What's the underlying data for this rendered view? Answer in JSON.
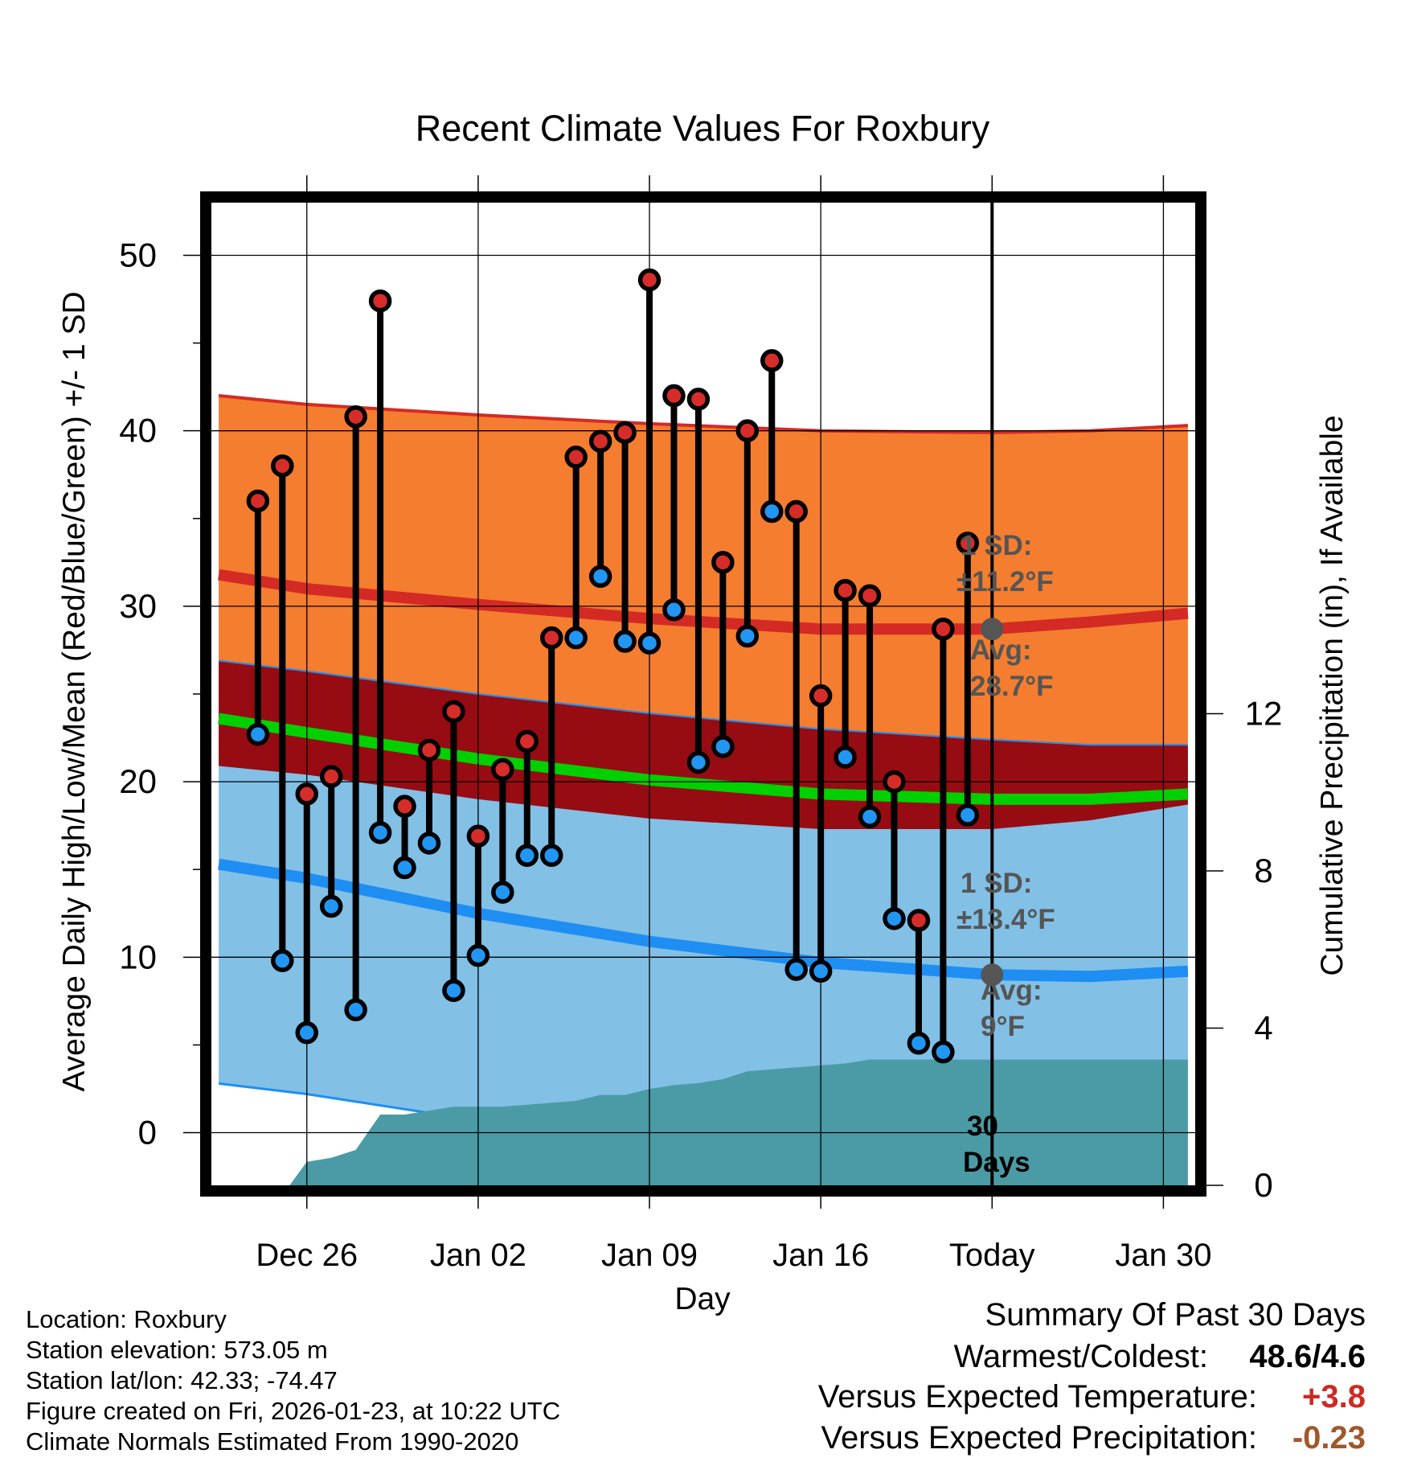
{
  "chart_data": {
    "type": "line",
    "title": "Recent Climate Values For Roxbury",
    "xlabel": "Day",
    "ylabel": "Average Daily High/Low/Mean (Red/Blue/Green) +/- 1 SD",
    "ylabel_right": "Cumulative Precipitation (in), If Available",
    "ylim": [
      -3,
      53
    ],
    "ylim_right": [
      0,
      25
    ],
    "x_range": [
      -3.9,
      36.3
    ],
    "x_ticks": [
      {
        "x": 0,
        "label": "Dec 26"
      },
      {
        "x": 7,
        "label": "Jan 02"
      },
      {
        "x": 14,
        "label": "Jan 09"
      },
      {
        "x": 21,
        "label": "Jan 16"
      },
      {
        "x": 28,
        "label": "Today"
      },
      {
        "x": 35,
        "label": "Jan 30"
      }
    ],
    "y_ticks": [
      0,
      10,
      20,
      30,
      40,
      50
    ],
    "y_ticks_right": [
      0,
      4,
      8,
      12
    ],
    "normals_x": [
      -3.6,
      0,
      7,
      14,
      21,
      28,
      32,
      36
    ],
    "normal_high": [
      31.8,
      31.0,
      30.1,
      29.3,
      28.7,
      28.7,
      29.1,
      29.6
    ],
    "normal_high_plus_sd": [
      42.0,
      41.5,
      40.9,
      40.4,
      40.0,
      39.9,
      40.0,
      40.3
    ],
    "normal_high_minus_sd": [
      20.9,
      20.4,
      19.0,
      17.9,
      17.3,
      17.3,
      17.8,
      18.7
    ],
    "normal_low": [
      15.3,
      14.5,
      12.5,
      10.9,
      9.7,
      9.0,
      8.9,
      9.2
    ],
    "normal_low_plus_sd": [
      26.9,
      26.3,
      25.0,
      23.9,
      23.0,
      22.4,
      22.1,
      22.1
    ],
    "normal_low_minus_sd": [
      2.8,
      2.2,
      0.7,
      -0.1,
      -0.1,
      -0.1,
      -0.1,
      -0.1
    ],
    "normal_mean": [
      23.6,
      22.8,
      21.3,
      20.1,
      19.3,
      19.0,
      19.0,
      19.3
    ],
    "high_sd_label": "1 SD:",
    "high_sd_value": "±11.2°F",
    "high_avg_label": "Avg:",
    "high_avg_value": "28.7°F",
    "low_sd_label": "1 SD:",
    "low_sd_value": "±13.4°F",
    "low_avg_label": "Avg:",
    "low_avg_value": "9°F",
    "window_label": "30 Days",
    "days": [
      -2,
      -1,
      0,
      1,
      2,
      3,
      4,
      5,
      6,
      7,
      8,
      9,
      10,
      11,
      12,
      13,
      14,
      15,
      16,
      17,
      18,
      19,
      20,
      21,
      22,
      23,
      24,
      25,
      26,
      27
    ],
    "highs": [
      36.0,
      38.0,
      19.3,
      20.3,
      40.8,
      47.4,
      18.6,
      21.8,
      24.0,
      16.9,
      20.7,
      22.3,
      28.2,
      38.5,
      39.4,
      39.9,
      48.6,
      42.0,
      41.8,
      32.5,
      40.0,
      44.0,
      35.4,
      24.9,
      30.9,
      30.6,
      20.0,
      12.1,
      28.7,
      33.6
    ],
    "lows": [
      22.7,
      9.8,
      5.7,
      12.9,
      7.0,
      17.1,
      15.1,
      16.5,
      8.1,
      10.1,
      13.7,
      15.8,
      15.8,
      28.2,
      31.7,
      28.0,
      27.9,
      29.8,
      21.1,
      22.0,
      28.3,
      35.4,
      9.3,
      9.2,
      21.4,
      18.0,
      12.2,
      5.1,
      4.6,
      18.1
    ],
    "precip_x": [
      -0.7,
      0,
      1,
      2,
      3,
      4,
      5,
      6,
      7,
      8,
      9,
      10,
      11,
      12,
      13,
      14,
      15,
      16,
      17,
      18,
      19,
      20,
      21,
      22,
      23,
      24,
      25,
      26,
      27,
      28,
      36
    ],
    "precip_cum": [
      0.0,
      0.6,
      0.7,
      0.9,
      1.8,
      1.8,
      1.9,
      2.0,
      2.0,
      2.0,
      2.05,
      2.1,
      2.15,
      2.3,
      2.3,
      2.45,
      2.55,
      2.6,
      2.7,
      2.9,
      2.95,
      3.0,
      3.05,
      3.1,
      3.2,
      3.2,
      3.2,
      3.2,
      3.2,
      3.2,
      3.2
    ]
  },
  "footer": {
    "location": "Location: Roxbury",
    "elevation": "Station elevation: 573.05 m",
    "latlon": "Station lat/lon: 42.33; -74.47",
    "created": "Figure created on Fri, 2026-01-23, at 10:22 UTC",
    "normals": "Climate Normals Estimated From 1990-2020"
  },
  "summary": {
    "title": "Summary Of Past 30 Days",
    "warm_cold_label": "Warmest/Coldest:",
    "warm_cold_value": "48.6/4.6",
    "temp_label": "Versus Expected Temperature:",
    "temp_value": "+3.8",
    "precip_label": "Versus Expected Precipitation:",
    "precip_value": "-0.23"
  },
  "colors": {
    "high_band": "#f47d2f",
    "high_line": "#d42a25",
    "low_overlap_band": "#960c12",
    "low_band": "#82c0e6",
    "low_line": "#1f8ef2",
    "mean_line": "#00d000",
    "precip_fill": "#4a9ba5",
    "high_dot": "#d62d2a",
    "low_dot": "#2196f3",
    "annotation": "#555555",
    "temp_value": "#cc2a22",
    "precip_value": "#a0582b"
  }
}
